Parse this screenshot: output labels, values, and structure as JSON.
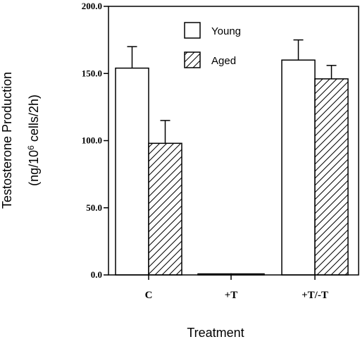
{
  "chart_data": {
    "type": "bar",
    "title": "",
    "xlabel": "Treatment",
    "ylabel": {
      "line1": "Testosterone Production",
      "line2_prefix": "(ng/10",
      "line2_sup": "6",
      "line2_suffix": " cells/2h)"
    },
    "ylim": [
      0,
      200
    ],
    "yticks": [
      "0.0",
      "50.0",
      "100.0",
      "150.0",
      "200.0"
    ],
    "categories": [
      "C",
      "+T",
      "+T/-T"
    ],
    "series": [
      {
        "name": "Young",
        "pattern": "open",
        "values": [
          154,
          0.5,
          160
        ],
        "errors": [
          16,
          null,
          15
        ]
      },
      {
        "name": "Aged",
        "pattern": "hatched",
        "values": [
          98,
          0.5,
          146
        ],
        "errors": [
          17,
          null,
          10
        ]
      }
    ],
    "legend_position": "top-center",
    "colors": {
      "stroke": "#000000",
      "fill": "#ffffff"
    }
  }
}
